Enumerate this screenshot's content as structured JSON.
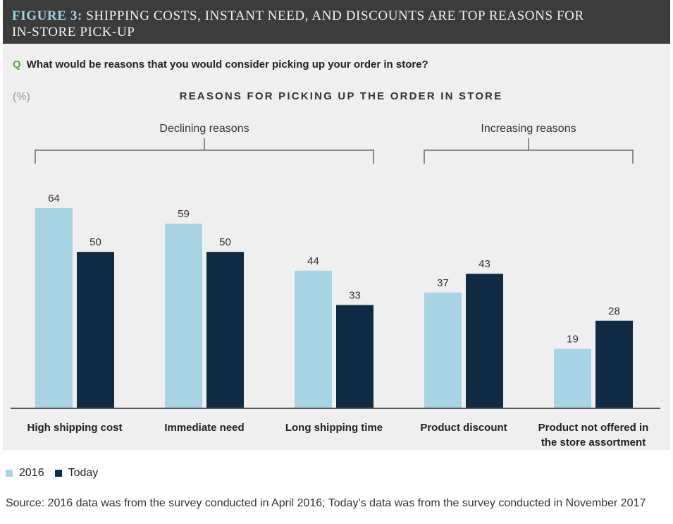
{
  "header": {
    "figure_label": "FIGURE 3:",
    "title_lines": [
      "SHIPPING COSTS, INSTANT NEED, AND DISCOUNTS ARE TOP REASONS FOR",
      "IN-STORE PICK-UP"
    ]
  },
  "question": {
    "marker": "Q",
    "text": "What would be reasons that you would consider picking up your order in store?"
  },
  "colors": {
    "header_bg": "#3c3c3c",
    "figure_label": "#9fd3e8",
    "panel_bg": "#efefef",
    "question_marker": "#55a844"
  },
  "chart_data": {
    "type": "bar",
    "title": "REASONS FOR PICKING UP THE ORDER IN STORE",
    "unit_label": "(%)",
    "xlabel": "",
    "ylabel": "",
    "grid": false,
    "legend": "bottom-left",
    "categories": [
      "High shipping cost",
      "Immediate need",
      "Long shipping time",
      "Product discount",
      "Product not offered in the store assortment"
    ],
    "series": [
      {
        "name": "2016",
        "values": [
          64,
          59,
          44,
          37,
          19
        ],
        "color": "#a7d3e5"
      },
      {
        "name": "Today",
        "values": [
          50,
          50,
          33,
          43,
          28
        ],
        "color": "#0f2c44"
      }
    ],
    "groups": [
      {
        "label": "Declining reasons",
        "category_indices": [
          0,
          1,
          2
        ]
      },
      {
        "label": "Increasing reasons",
        "category_indices": [
          3,
          4
        ]
      }
    ]
  },
  "source": "Source: 2016 data was from the survey conducted in April 2016; Today’s data was from the survey conducted in November 2017"
}
